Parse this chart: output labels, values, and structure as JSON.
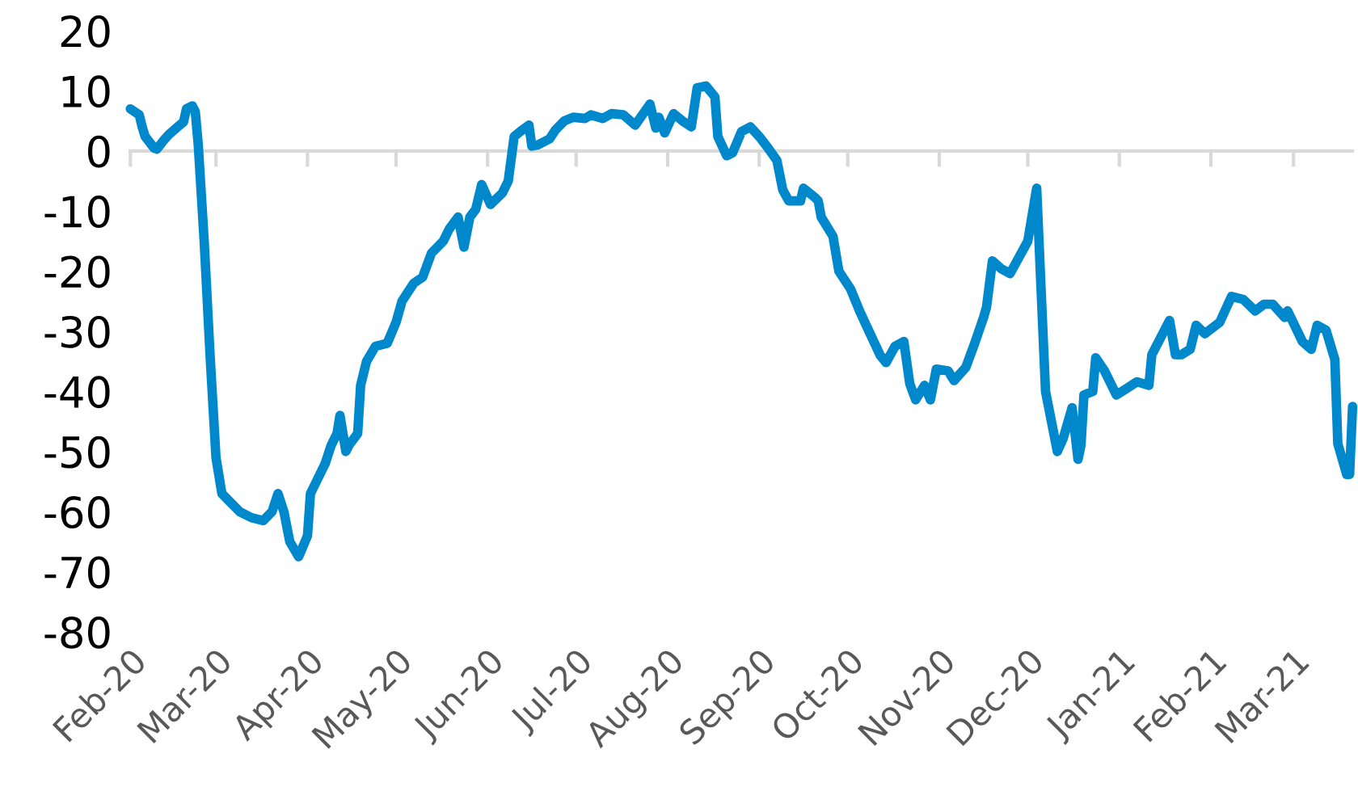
{
  "chart_data": {
    "type": "line",
    "x": [
      "2020-02-01",
      "2020-02-04",
      "2020-02-05",
      "2020-02-06",
      "2020-02-09",
      "2020-02-10",
      "2020-02-12",
      "2020-02-14",
      "2020-02-17",
      "2020-02-19",
      "2020-02-20",
      "2020-02-22",
      "2020-02-23",
      "2020-02-24",
      "2020-02-26",
      "2020-02-28",
      "2020-03-01",
      "2020-03-03",
      "2020-03-05",
      "2020-03-09",
      "2020-03-13",
      "2020-03-17",
      "2020-03-20",
      "2020-03-22",
      "2020-03-24",
      "2020-03-26",
      "2020-03-29",
      "2020-04-01",
      "2020-04-02",
      "2020-04-04",
      "2020-04-07",
      "2020-04-09",
      "2020-04-11",
      "2020-04-12",
      "2020-04-14",
      "2020-04-15",
      "2020-04-18",
      "2020-04-19",
      "2020-04-21",
      "2020-04-24",
      "2020-04-28",
      "2020-05-01",
      "2020-05-03",
      "2020-05-07",
      "2020-05-10",
      "2020-05-13",
      "2020-05-17",
      "2020-05-19",
      "2020-05-22",
      "2020-05-24",
      "2020-05-26",
      "2020-05-28",
      "2020-05-30",
      "2020-06-02",
      "2020-06-06",
      "2020-06-08",
      "2020-06-10",
      "2020-06-12",
      "2020-06-15",
      "2020-06-16",
      "2020-06-18",
      "2020-06-22",
      "2020-06-24",
      "2020-06-27",
      "2020-06-30",
      "2020-07-04",
      "2020-07-06",
      "2020-07-10",
      "2020-07-13",
      "2020-07-17",
      "2020-07-21",
      "2020-07-26",
      "2020-07-28",
      "2020-07-29",
      "2020-07-31",
      "2020-08-03",
      "2020-08-06",
      "2020-08-09",
      "2020-08-11",
      "2020-08-14",
      "2020-08-17",
      "2020-08-18",
      "2020-08-21",
      "2020-08-23",
      "2020-08-26",
      "2020-08-29",
      "2020-09-01",
      "2020-09-04",
      "2020-09-07",
      "2020-09-09",
      "2020-09-11",
      "2020-09-15",
      "2020-09-16",
      "2020-09-20",
      "2020-09-21",
      "2020-09-22",
      "2020-09-26",
      "2020-09-28",
      "2020-10-02",
      "2020-10-05",
      "2020-10-08",
      "2020-10-12",
      "2020-10-14",
      "2020-10-17",
      "2020-10-20",
      "2020-10-22",
      "2020-10-24",
      "2020-10-27",
      "2020-10-29",
      "2020-10-31",
      "2020-11-04",
      "2020-11-06",
      "2020-11-10",
      "2020-11-13",
      "2020-11-16",
      "2020-11-17",
      "2020-11-19",
      "2020-11-22",
      "2020-11-25",
      "2020-12-01",
      "2020-12-04",
      "2020-12-07",
      "2020-12-11",
      "2020-12-13",
      "2020-12-16",
      "2020-12-18",
      "2020-12-19",
      "2020-12-20",
      "2020-12-23",
      "2020-12-24",
      "2020-12-27",
      "2020-12-31",
      "2021-01-07",
      "2021-01-11",
      "2021-01-12",
      "2021-01-18",
      "2021-01-20",
      "2021-01-22",
      "2021-01-25",
      "2021-01-27",
      "2021-01-30",
      "2021-02-04",
      "2021-02-08",
      "2021-02-12",
      "2021-02-16",
      "2021-02-19",
      "2021-02-22",
      "2021-02-26",
      "2021-02-27",
      "2021-03-04",
      "2021-03-07",
      "2021-03-09",
      "2021-03-12",
      "2021-03-15",
      "2021-03-16",
      "2021-03-19",
      "2021-03-20",
      "2021-03-21"
    ],
    "series": [
      {
        "color": "#0088cc",
        "values": [
          7,
          6,
          4,
          2.4,
          0.5,
          0.3,
          1.6,
          2.7,
          4,
          4.8,
          7,
          7.5,
          6.5,
          1,
          -15,
          -34,
          -51,
          -57,
          -58,
          -60,
          -61,
          -61.5,
          -60,
          -57,
          -60,
          -65,
          -67.5,
          -64,
          -57,
          -55,
          -52,
          -49,
          -47,
          -44,
          -50,
          -49,
          -47,
          -39,
          -35,
          -32.5,
          -32,
          -28.5,
          -25,
          -22,
          -21,
          -17,
          -15,
          -13,
          -11,
          -16,
          -11,
          -9.7,
          -5.6,
          -8.9,
          -7,
          -5,
          2.4,
          3.2,
          4.3,
          0.8,
          1,
          2,
          3.5,
          5,
          5.6,
          5.4,
          6,
          5.4,
          6.2,
          6,
          4.3,
          7.8,
          3.8,
          5.6,
          3,
          6.2,
          5,
          4,
          10.5,
          10.8,
          9,
          2.4,
          -0.8,
          -0.3,
          3.2,
          4,
          2.4,
          0.5,
          -1.6,
          -6.5,
          -8.3,
          -8.3,
          -6.2,
          -7.8,
          -8.3,
          -11,
          -14.2,
          -20,
          -23,
          -26.6,
          -29.8,
          -34,
          -35.2,
          -32.5,
          -31.7,
          -38.7,
          -41.4,
          -39,
          -41.4,
          -36.3,
          -36.6,
          -38.2,
          -36,
          -32,
          -27.7,
          -26,
          -18.3,
          -19.6,
          -20.4,
          -15,
          -6.2,
          -40,
          -50,
          -47.8,
          -42.7,
          -51.3,
          -49,
          -40.6,
          -40,
          -34.4,
          -36.6,
          -40.6,
          -38.4,
          -39,
          -33.9,
          -28.2,
          -33.9,
          -33.9,
          -33,
          -29,
          -30.4,
          -28.5,
          -24.2,
          -24.7,
          -26.6,
          -25.5,
          -25.5,
          -27.7,
          -26.6,
          -31.7,
          -33,
          -29,
          -29.8,
          -34.7,
          -48.7,
          -53.8,
          -53.8,
          -42.5
        ]
      }
    ],
    "xlim": [
      "2020-02-01",
      "2021-03-21"
    ],
    "xticks": [
      {
        "value": "2020-02-01",
        "label": "Feb-20"
      },
      {
        "value": "2020-03-01",
        "label": "Mar-20"
      },
      {
        "value": "2020-04-01",
        "label": "Apr-20"
      },
      {
        "value": "2020-05-01",
        "label": "May-20"
      },
      {
        "value": "2020-06-01",
        "label": "Jun-20"
      },
      {
        "value": "2020-07-01",
        "label": "Jul-20"
      },
      {
        "value": "2020-08-01",
        "label": "Aug-20"
      },
      {
        "value": "2020-09-01",
        "label": "Sep-20"
      },
      {
        "value": "2020-10-01",
        "label": "Oct-20"
      },
      {
        "value": "2020-11-01",
        "label": "Nov-20"
      },
      {
        "value": "2020-12-01",
        "label": "Dec-20"
      },
      {
        "value": "2021-01-01",
        "label": "Jan-21"
      },
      {
        "value": "2021-02-01",
        "label": "Feb-21"
      },
      {
        "value": "2021-03-01",
        "label": "Mar-21"
      }
    ],
    "ylim": [
      -80,
      20
    ],
    "yticks": [
      -80,
      -70,
      -60,
      -50,
      -40,
      -30,
      -20,
      -10,
      0,
      10,
      20
    ],
    "marker": "none",
    "line_style": "solid"
  }
}
